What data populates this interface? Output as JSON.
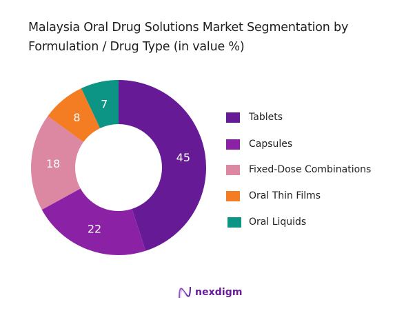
{
  "title": {
    "line1": "Malaysia Oral Drug Solutions Market Segmentation by",
    "line2": "Formulation / Drug Type (in value %)"
  },
  "legend": {
    "items": [
      {
        "label": "Tablets",
        "color": "#671a96"
      },
      {
        "label": "Capsules",
        "color": "#8b22a6"
      },
      {
        "label": "Fixed-Dose Combinations",
        "color": "#dc88a2"
      },
      {
        "label": "Oral Thin Films",
        "color": "#f47d23"
      },
      {
        "label": "Oral Liquids",
        "color": "#0c9484"
      }
    ]
  },
  "logo": {
    "text": "nexdigm",
    "icon": "nexdigm-wave-icon"
  },
  "chart_data": {
    "type": "pie",
    "variant": "donut",
    "title": "Malaysia Oral Drug Solutions Market Segmentation by Formulation / Drug Type (in value %)",
    "categories": [
      "Tablets",
      "Capsules",
      "Fixed-Dose Combinations",
      "Oral Thin Films",
      "Oral Liquids"
    ],
    "values": [
      45,
      22,
      18,
      8,
      7
    ],
    "labels": [
      "45",
      "22",
      "18",
      "8",
      "7"
    ],
    "colors": [
      "#671a96",
      "#8b22a6",
      "#dc88a2",
      "#f47d23",
      "#0c9484"
    ],
    "start_angle_deg": 0,
    "direction": "clockwise",
    "legend_position": "right",
    "unit": "%"
  }
}
